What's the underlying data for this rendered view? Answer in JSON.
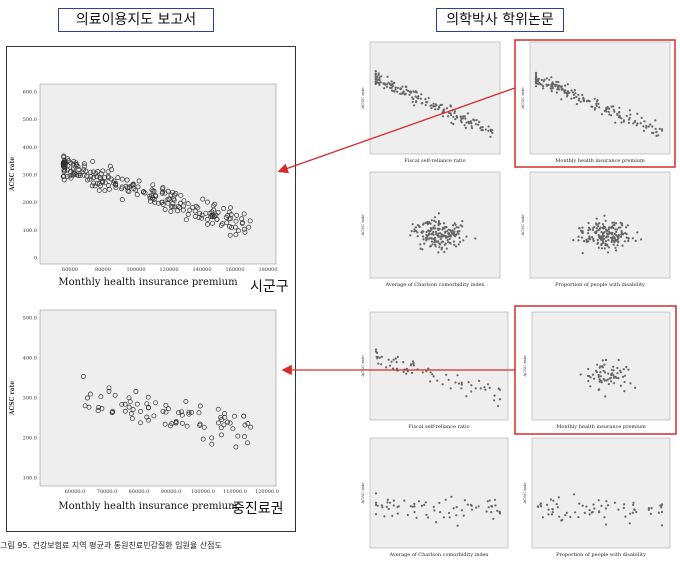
{
  "header": {
    "left_title": "의료이용지도 보고서",
    "right_title": "의학박사 학위논문"
  },
  "regions": {
    "sigungu": "시군구",
    "jungjin": "중진료권"
  },
  "caption": "그림 95. 건강보험료 지역 평균과 통원진료민감질환 입원율 산점도",
  "panels": {
    "big_top": {
      "ylabel": "ACSC rate",
      "xlabel": "Monthly health insurance premium",
      "yticks": [
        "600.0",
        "500.0",
        "400.0",
        "300.0",
        "200.0",
        "100.0",
        "0"
      ],
      "xticks": [
        "60000",
        "80000",
        "100000",
        "120000",
        "140000",
        "160000",
        "180000"
      ]
    },
    "big_bottom": {
      "ylabel": "ACSC rate",
      "xlabel": "Monthly health insurance premium",
      "yticks": [
        "500.0",
        "400.0",
        "300.0",
        "200.0",
        "100.0"
      ],
      "xticks": [
        "60000.0",
        "70000.0",
        "80000.0",
        "90000.0",
        "100000.0",
        "110000.0",
        "120000.0"
      ]
    },
    "small": [
      {
        "xlabel": "Fiscal self-reliance ratio",
        "ylabel": "ACSC rate"
      },
      {
        "xlabel": "Monthly health insurance premium",
        "ylabel": "ACSC rate"
      },
      {
        "xlabel": "Average of Charlson comorbidity index",
        "ylabel": "ACSC rate"
      },
      {
        "xlabel": "Proportion of people with disability",
        "ylabel": "ACSC rate"
      },
      {
        "xlabel": "Fiscal self-reliance ratio",
        "ylabel": "ACSC rate"
      },
      {
        "xlabel": "Monthly health insurance premium",
        "ylabel": "ACSC rate"
      },
      {
        "xlabel": "Average of Charlson comorbidity index",
        "ylabel": "ACSC rate"
      },
      {
        "xlabel": "Proportion of people with disability",
        "ylabel": "ACSC rate"
      }
    ]
  },
  "colors": {
    "title_border": "#2b3f9e",
    "highlight": "#d42b2b",
    "arrow": "#d42b2b",
    "plot_bg": "#eeeeee"
  }
}
